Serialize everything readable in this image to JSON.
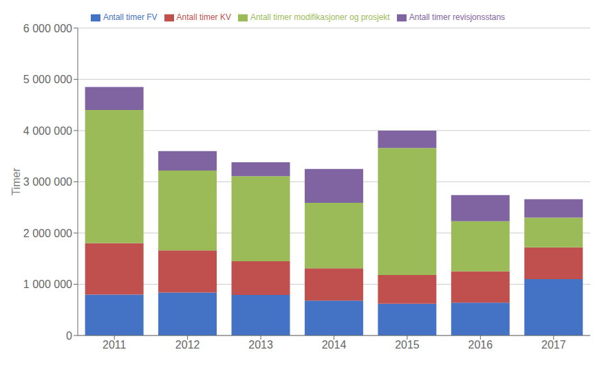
{
  "chart_data": {
    "type": "bar",
    "ylabel": "Timer",
    "categories": [
      "2011",
      "2012",
      "2013",
      "2014",
      "2015",
      "2016",
      "2017"
    ],
    "series": [
      {
        "name": "Antall timer FV",
        "color": "#4472C4",
        "values": [
          800000,
          840000,
          790000,
          680000,
          620000,
          640000,
          1100000
        ]
      },
      {
        "name": "Antall timer KV",
        "color": "#C0504D",
        "values": [
          1000000,
          820000,
          660000,
          630000,
          560000,
          610000,
          620000
        ]
      },
      {
        "name": "Antall timer modifikasjoner og prosjekt",
        "color": "#9BBB59",
        "values": [
          2600000,
          1560000,
          1660000,
          1280000,
          2480000,
          980000,
          580000
        ]
      },
      {
        "name": "Antall timer revisjonsstans",
        "color": "#8064A2",
        "values": [
          450000,
          380000,
          270000,
          660000,
          340000,
          510000,
          360000
        ]
      }
    ],
    "stacked": true,
    "ylim": [
      0,
      6000000
    ],
    "yticks": [
      0,
      {
        "value": 1000000,
        "label": "1 000 000"
      },
      {
        "value": 2000000,
        "label": "2 000 000"
      },
      {
        "value": 3000000,
        "label": "3 000 000"
      },
      {
        "value": 4000000,
        "label": "4 000 000"
      },
      {
        "value": 5000000,
        "label": "5 000 000"
      },
      {
        "value": 6000000,
        "label": "6 000 000"
      }
    ],
    "grid": true,
    "legend": "top"
  }
}
